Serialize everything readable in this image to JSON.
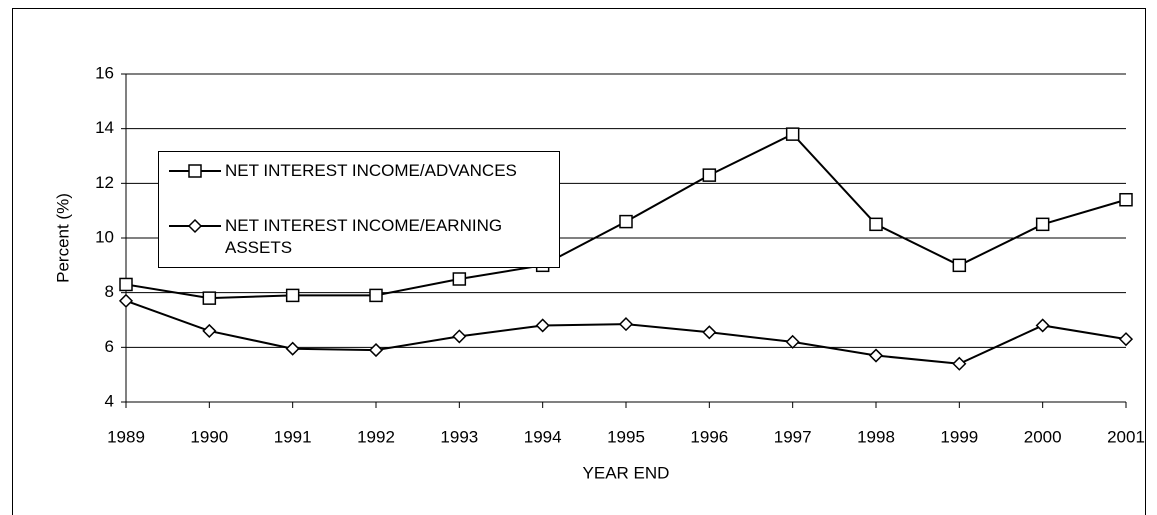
{
  "chart_data": {
    "type": "line",
    "x_label": "YEAR END",
    "y_label": "Percent (%)",
    "categories": [
      "1989",
      "1990",
      "1991",
      "1992",
      "1993",
      "1994",
      "1995",
      "1996",
      "1997",
      "1998",
      "1999",
      "2000",
      "2001"
    ],
    "series": [
      {
        "name": "NET INTEREST INCOME/ADVANCES",
        "color": "#000000",
        "marker": "square",
        "values": [
          8.3,
          7.8,
          7.9,
          7.9,
          8.5,
          9.0,
          10.6,
          12.3,
          13.8,
          10.5,
          9.0,
          10.5,
          11.4
        ]
      },
      {
        "name": "NET INTEREST INCOME/EARNING ASSETS",
        "color": "#000000",
        "marker": "diamond",
        "values": [
          7.7,
          6.6,
          5.95,
          5.9,
          6.4,
          6.8,
          6.85,
          6.55,
          6.2,
          5.7,
          5.4,
          6.8,
          6.3
        ]
      }
    ],
    "ylim": [
      4,
      16
    ],
    "yticks": [
      4,
      6,
      8,
      10,
      12,
      14,
      16
    ],
    "grid": true,
    "legend": "upper left"
  }
}
